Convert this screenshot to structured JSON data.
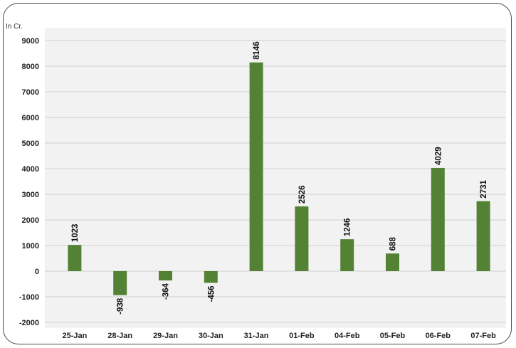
{
  "chart_data": {
    "type": "bar",
    "unit_label": "In Cr.",
    "categories": [
      "25-Jan",
      "28-Jan",
      "29-Jan",
      "30-Jan",
      "31-Jan",
      "01-Feb",
      "04-Feb",
      "05-Feb",
      "06-Feb",
      "07-Feb"
    ],
    "values": [
      1023,
      -938,
      -364,
      -456,
      8146,
      2526,
      1246,
      688,
      4029,
      2731
    ],
    "data_labels": [
      "1023",
      "-938",
      "-364",
      "-456",
      "8146",
      "2526",
      "1246",
      "688",
      "4029",
      "2731"
    ],
    "y_ticks": [
      "-2000",
      "-1000",
      "0",
      "1000",
      "2000",
      "3000",
      "4000",
      "5000",
      "6000",
      "7000",
      "8000",
      "9000"
    ],
    "ylim": [
      -2000,
      9000
    ],
    "grid": true,
    "legend": "none",
    "colors": {
      "bar": "#548235",
      "plot_background": "#f2f2f2",
      "gridline": "#d0d0d0"
    }
  }
}
